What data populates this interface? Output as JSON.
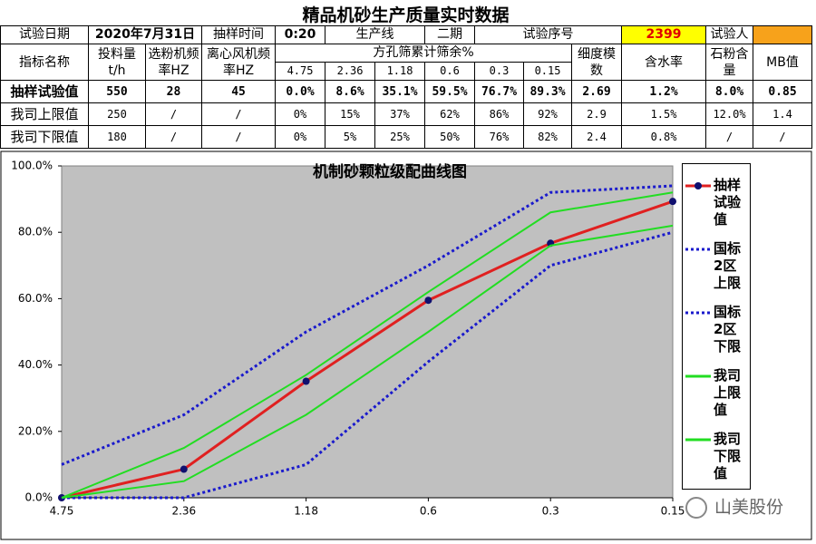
{
  "header": {
    "title": "精品机砂生产质量实时数据"
  },
  "info_row": [
    "试验日期",
    "2020年7月31日",
    "抽样时间",
    "0:20",
    "生产线",
    "二期",
    "试验序号",
    "2399",
    "试验人"
  ],
  "table": {
    "columns": [
      "指标名称",
      "投料量 t/h",
      "选粉机频率HZ",
      "离心风机频率HZ",
      "细度模数",
      "含水率",
      "石粉含量",
      "MB值"
    ],
    "group_header": "方孔筛累计筛余%",
    "sieve_sizes": [
      "4.75",
      "2.36",
      "1.18",
      "0.6",
      "0.3",
      "0.15"
    ],
    "rows": [
      [
        "抽样试验值",
        "550",
        "28",
        "45",
        "0.0%",
        "8.6%",
        "35.1%",
        "59.5%",
        "76.7%",
        "89.3%",
        "2.69",
        "1.2%",
        "8.0%",
        "0.85"
      ],
      [
        "我司上限值",
        "250",
        "/",
        "/",
        "0%",
        "15%",
        "37%",
        "62%",
        "86%",
        "92%",
        "2.9",
        "1.5%",
        "12.0%",
        "1.4"
      ],
      [
        "我司下限值",
        "180",
        "/",
        "/",
        "0%",
        "5%",
        "25%",
        "50%",
        "76%",
        "82%",
        "2.4",
        "0.8%",
        "/",
        "/"
      ]
    ]
  },
  "chart_data": {
    "type": "line",
    "title": "机制砂颗粒级配曲线图",
    "categories": [
      "4.75",
      "2.36",
      "1.18",
      "0.6",
      "0.3",
      "0.15"
    ],
    "ylim": [
      0,
      100
    ],
    "yticks": [
      {
        "value": 0,
        "label": "0.0%"
      },
      {
        "value": 20,
        "label": "20.0%"
      },
      {
        "value": 40,
        "label": "40.0%"
      },
      {
        "value": 60,
        "label": "60.0%"
      },
      {
        "value": 80,
        "label": "80.0%"
      },
      {
        "value": 100,
        "label": "100.0%"
      }
    ],
    "legend": "right",
    "series": [
      {
        "name": "抽样试验值",
        "color": "#e02020",
        "marker_color": "#101070",
        "markers": true,
        "dash": false,
        "values": [
          0,
          8.6,
          35.1,
          59.5,
          76.7,
          89.3
        ]
      },
      {
        "name": "国标2区上限",
        "color": "#1a1acc",
        "markers": false,
        "dash": true,
        "values": [
          10,
          25,
          50,
          70,
          92,
          94
        ]
      },
      {
        "name": "国标2区下限",
        "color": "#1a1acc",
        "markers": false,
        "dash": true,
        "values": [
          0,
          0,
          10,
          41,
          70,
          80
        ]
      },
      {
        "name": "我司上限值",
        "color": "#22dd22",
        "markers": false,
        "dash": false,
        "values": [
          0,
          15,
          37,
          62,
          86,
          92
        ]
      },
      {
        "name": "我司下限值",
        "color": "#22dd22",
        "markers": false,
        "dash": false,
        "values": [
          0,
          5,
          25,
          50,
          76,
          82
        ]
      }
    ]
  },
  "watermark": "山美股份"
}
